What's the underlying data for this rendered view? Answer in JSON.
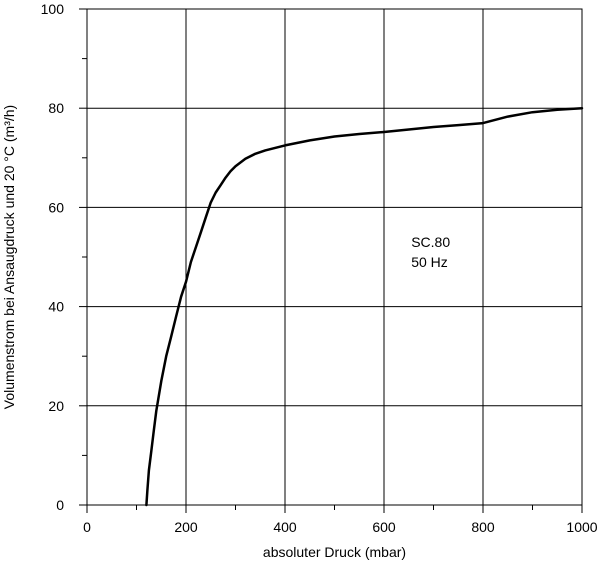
{
  "chart_data": {
    "type": "line",
    "title": "",
    "xlabel": "absoluter Druck (mbar)",
    "ylabel": "Volumenstrom bei Ansaugdruck und 20 °C (m³/h)",
    "xlim": [
      0,
      1000
    ],
    "ylim": [
      0,
      100
    ],
    "xticks": [
      0,
      200,
      400,
      600,
      800,
      1000
    ],
    "yticks": [
      0,
      20,
      40,
      60,
      80,
      100
    ],
    "x_minor_step": 100,
    "y_minor_step": 10,
    "grid": true,
    "annotation": {
      "lines": [
        "SC.80",
        "50 Hz"
      ],
      "x": 655,
      "y": 52
    },
    "series": [
      {
        "x": [
          120,
          122,
          125,
          130,
          135,
          140,
          150,
          160,
          170,
          180,
          190,
          200,
          210,
          220,
          230,
          240,
          250,
          260,
          270,
          280,
          290,
          300,
          320,
          340,
          360,
          380,
          400,
          450,
          500,
          550,
          600,
          650,
          700,
          750,
          800,
          850,
          900,
          950,
          1000
        ],
        "y": [
          0,
          3,
          7,
          11,
          15,
          19,
          25,
          30,
          34,
          38,
          42,
          45,
          49,
          52,
          55,
          58,
          61,
          63,
          64.5,
          66,
          67.3,
          68.3,
          69.8,
          70.8,
          71.5,
          72,
          72.5,
          73.5,
          74.3,
          74.8,
          75.2,
          75.7,
          76.2,
          76.6,
          77,
          78.3,
          79.2,
          79.7,
          80
        ]
      }
    ]
  }
}
